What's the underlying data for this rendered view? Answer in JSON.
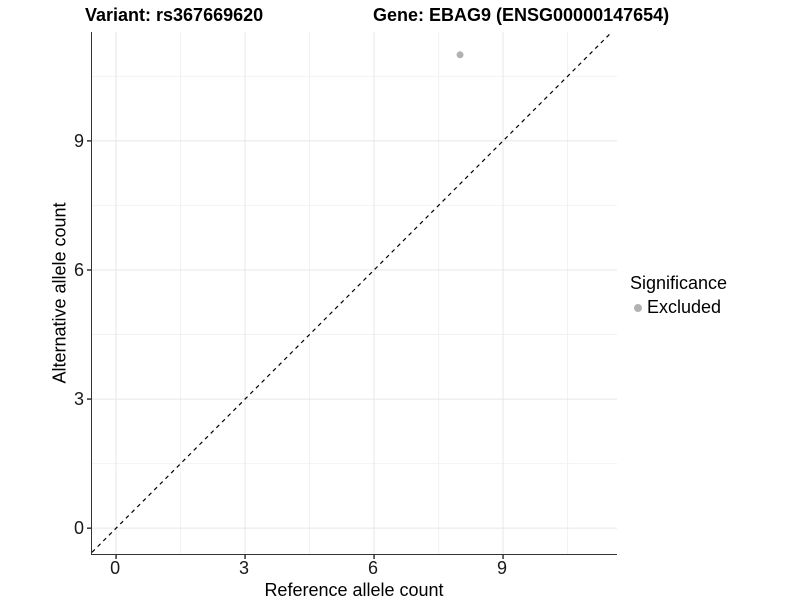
{
  "titles": {
    "variant": "Variant: rs367669620",
    "gene": "Gene: EBAG9 (ENSG00000147654)"
  },
  "chart_data": {
    "type": "scatter",
    "title": "Variant: rs367669620  Gene: EBAG9 (ENSG00000147654)",
    "xlabel": "Reference allele count",
    "ylabel": "Alternative allele count",
    "xlim": [
      -0.56,
      11.65
    ],
    "ylim": [
      -0.6,
      11.53
    ],
    "x_ticks": [
      0,
      3,
      6,
      9
    ],
    "y_ticks": [
      0,
      3,
      6,
      9
    ],
    "minor_ticks": [
      1.5,
      4.5,
      7.5,
      10.5
    ],
    "grid": "major+minor",
    "points": [
      {
        "x": 8,
        "y": 11,
        "series": "Excluded"
      }
    ],
    "reference_line": {
      "kind": "identity",
      "style": "dashed",
      "color": "#000000"
    },
    "legend": {
      "position": "right",
      "title": "Significance",
      "entries": [
        {
          "label": "Excluded",
          "color": "#b2b2b2"
        }
      ]
    },
    "colors": {
      "point_excluded": "#b2b2b2",
      "major_grid": "#e7e7e7",
      "minor_grid": "#f2f2f2",
      "axis_line": "#333333",
      "dashed_line": "#000000"
    }
  }
}
